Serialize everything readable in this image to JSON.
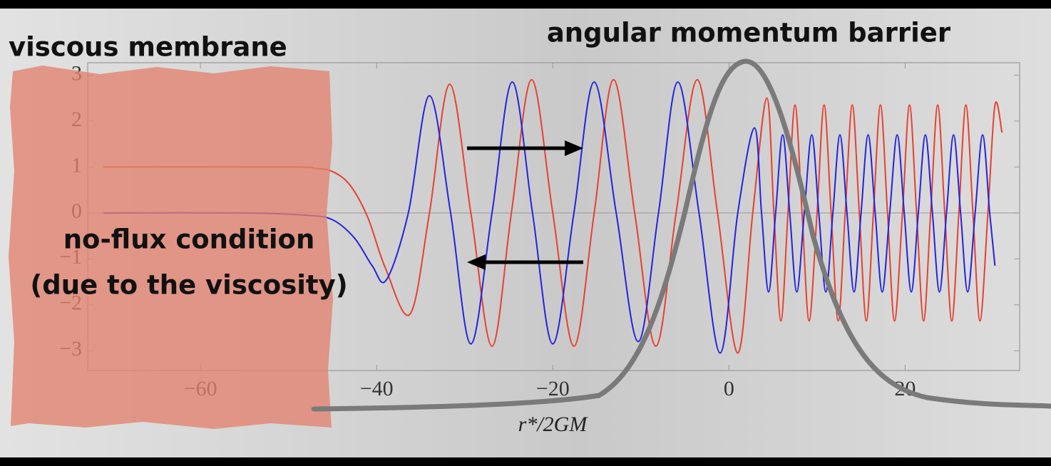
{
  "chart_data": {
    "type": "line",
    "annotations": [
      "viscous membrane",
      "angular momentum barrier",
      "no-flux condition",
      "(due to the viscosity)"
    ],
    "x_label": "r*/2GM",
    "xlim": [
      -72.8,
      33
    ],
    "ylim": [
      -3.43,
      3.27
    ],
    "xticks": [
      {
        "value": -60,
        "label": "−60"
      },
      {
        "value": -40,
        "label": "−40"
      },
      {
        "value": -20,
        "label": "−20"
      },
      0,
      20
    ],
    "yticks": [
      {
        "value": -3,
        "label": "−3"
      },
      {
        "value": -2,
        "label": "−2"
      },
      {
        "value": -1,
        "label": "−1"
      },
      0,
      1,
      2,
      3
    ],
    "series": [
      {
        "color": "#e8402e",
        "x": [
          -71,
          -50,
          -47,
          -45,
          -43,
          -41,
          -39,
          -36.2,
          -34,
          -31.7,
          -29.3,
          -26.9,
          -24.7,
          -22.4,
          -20.0,
          -17.6,
          -15.3,
          -13.1,
          -10.7,
          -8.3,
          -6.0,
          -3.6,
          -1.3,
          1.0,
          2.7,
          4.3,
          5.1,
          5.9,
          6.7,
          7.5,
          8.3,
          9.1,
          10.0,
          10.8,
          11.6,
          12.4,
          13.2,
          14.0,
          14.8,
          15.6,
          16.4,
          17.2,
          18.0,
          18.8,
          19.7,
          20.5,
          21.3,
          22.1,
          22.9,
          23.7,
          24.5,
          25.3,
          26.1,
          26.9,
          27.7,
          28.5,
          29.4,
          30.2,
          31.0
        ],
        "values": [
          1,
          1,
          0.97,
          0.9,
          0.6,
          -0.1,
          -1.2,
          -2.2,
          0,
          2.8,
          0,
          -2.9,
          0,
          2.9,
          0,
          -2.9,
          0,
          2.9,
          0,
          -2.9,
          0,
          2.9,
          0,
          -3.05,
          0,
          2.5,
          0,
          -2.35,
          0,
          2.35,
          0,
          -2.35,
          0,
          2.35,
          0,
          -2.35,
          0,
          2.35,
          0,
          -2.35,
          0,
          2.35,
          0,
          -2.35,
          0,
          2.35,
          0,
          -2.35,
          0,
          2.35,
          0,
          -2.35,
          0,
          2.35,
          0,
          -2.35,
          0,
          2.35,
          1.75
        ]
      },
      {
        "color": "#2323e0",
        "x": [
          -71,
          -55,
          -48,
          -45,
          -42.5,
          -40.5,
          -38.9,
          -36.4,
          -34.0,
          -31.6,
          -29.3,
          -26.9,
          -24.6,
          -22.3,
          -20.0,
          -17.6,
          -15.3,
          -12.8,
          -10.3,
          -8.0,
          -5.8,
          -3.4,
          -1.0,
          1.0,
          2.9,
          3.7,
          4.5,
          5.3,
          6.1,
          6.9,
          7.7,
          8.55,
          9.4,
          10.2,
          11.0,
          11.8,
          12.6,
          13.4,
          14.2,
          15.0,
          15.8,
          16.6,
          17.4,
          18.25,
          19.1,
          19.9,
          20.7,
          21.5,
          22.3,
          23.1,
          23.9,
          24.7,
          25.5,
          26.3,
          27.1,
          27.95,
          28.8,
          29.6,
          30.2
        ],
        "values": [
          0,
          0,
          -0.05,
          -0.15,
          -0.55,
          -1.15,
          -1.46,
          0,
          2.55,
          0,
          -2.85,
          0,
          2.85,
          0,
          -2.85,
          0,
          2.85,
          0,
          -2.8,
          0,
          2.85,
          0,
          -3.05,
          0,
          1.85,
          0,
          -1.72,
          0,
          1.7,
          0,
          -1.72,
          0,
          1.7,
          0,
          -1.72,
          0,
          1.7,
          0,
          -1.72,
          0,
          1.7,
          0,
          -1.72,
          0,
          1.7,
          0,
          -1.72,
          0,
          1.7,
          0,
          -1.72,
          0,
          1.7,
          0,
          -1.72,
          0,
          1.7,
          0,
          -1.15
        ]
      }
    ]
  }
}
